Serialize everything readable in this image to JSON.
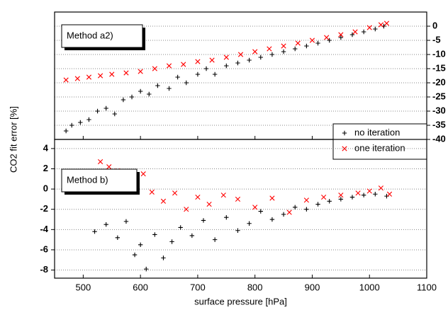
{
  "chart_data": [
    {
      "type": "scatter",
      "annotation": "Method a2)",
      "ylabel": "CO2 fit error [%]",
      "xlim": [
        450,
        1100
      ],
      "xticks": [
        500,
        600,
        700,
        800,
        900,
        1000,
        1100
      ],
      "y2lim": [
        -40,
        5
      ],
      "y2ticks": [
        0,
        -5,
        -10,
        -15,
        -20,
        -25,
        -30,
        -35,
        -40
      ],
      "grid": true,
      "legend": "lower right",
      "series": [
        {
          "name": "no iteration",
          "color": "#000000",
          "marker": "+",
          "axis": "y2",
          "x": [
            470,
            480,
            495,
            510,
            525,
            540,
            555,
            570,
            585,
            600,
            615,
            630,
            650,
            665,
            680,
            700,
            715,
            730,
            750,
            770,
            790,
            810,
            830,
            850,
            870,
            890,
            910,
            930,
            950,
            970,
            990,
            1010,
            1025
          ],
          "values": [
            -37,
            -35,
            -34,
            -33,
            -30,
            -29,
            -31,
            -26,
            -25,
            -23,
            -24,
            -21,
            -22,
            -18,
            -20,
            -17,
            -15,
            -17,
            -14,
            -13,
            -12,
            -11,
            -10,
            -9,
            -8,
            -7,
            -6,
            -5,
            -4,
            -3,
            -2,
            -1,
            0
          ]
        },
        {
          "name": "one iteration",
          "color": "#ff0000",
          "marker": "x",
          "axis": "y2",
          "x": [
            470,
            490,
            510,
            530,
            550,
            575,
            600,
            625,
            650,
            675,
            700,
            725,
            750,
            775,
            800,
            825,
            850,
            875,
            900,
            925,
            950,
            975,
            1000,
            1020,
            1030
          ],
          "values": [
            -19,
            -18.5,
            -18,
            -17.5,
            -17,
            -16.5,
            -16,
            -15,
            -14,
            -13.5,
            -12.5,
            -12,
            -11,
            -10,
            -9,
            -8,
            -7,
            -6,
            -5,
            -4,
            -3,
            -2,
            -0.5,
            0.5,
            1
          ]
        }
      ]
    },
    {
      "type": "scatter",
      "annotation": "Method b)",
      "xlabel": "surface pressure [hPa]",
      "xlim": [
        450,
        1100
      ],
      "xticks": [
        500,
        600,
        700,
        800,
        900,
        1000,
        1100
      ],
      "ylim": [
        -8.8,
        4.9
      ],
      "yticks": [
        -8,
        -6,
        -4,
        -2,
        0,
        2,
        4
      ],
      "grid": true,
      "series": [
        {
          "color": "#000000",
          "marker": "+",
          "x": [
            520,
            540,
            560,
            575,
            590,
            600,
            610,
            625,
            640,
            655,
            670,
            690,
            710,
            730,
            750,
            770,
            790,
            810,
            830,
            850,
            870,
            890,
            910,
            930,
            950,
            970,
            990,
            1010,
            1030
          ],
          "values": [
            -4.2,
            -3.5,
            -4.8,
            -3.2,
            -6.5,
            -5.5,
            -7.9,
            -4.5,
            -6.8,
            -5.2,
            -3.8,
            -4.6,
            -3.1,
            -5.0,
            -2.8,
            -4.1,
            -3.4,
            -2.2,
            -3.0,
            -2.5,
            -1.8,
            -2.0,
            -1.5,
            -1.2,
            -1.0,
            -0.8,
            -0.6,
            -0.5,
            -0.7
          ]
        },
        {
          "color": "#ff0000",
          "marker": "x",
          "x": [
            530,
            545,
            560,
            575,
            590,
            605,
            620,
            640,
            660,
            680,
            700,
            720,
            745,
            770,
            800,
            830,
            860,
            890,
            920,
            950,
            980,
            1000,
            1020,
            1035
          ],
          "values": [
            2.7,
            2.2,
            1.8,
            1.2,
            0.4,
            1.5,
            -0.3,
            -1.2,
            -0.4,
            -2.0,
            -0.8,
            -1.5,
            -0.6,
            -1.0,
            -1.8,
            -0.9,
            -2.3,
            -1.1,
            -0.8,
            -0.6,
            -0.4,
            -0.2,
            0.1,
            -0.5
          ]
        }
      ]
    }
  ]
}
